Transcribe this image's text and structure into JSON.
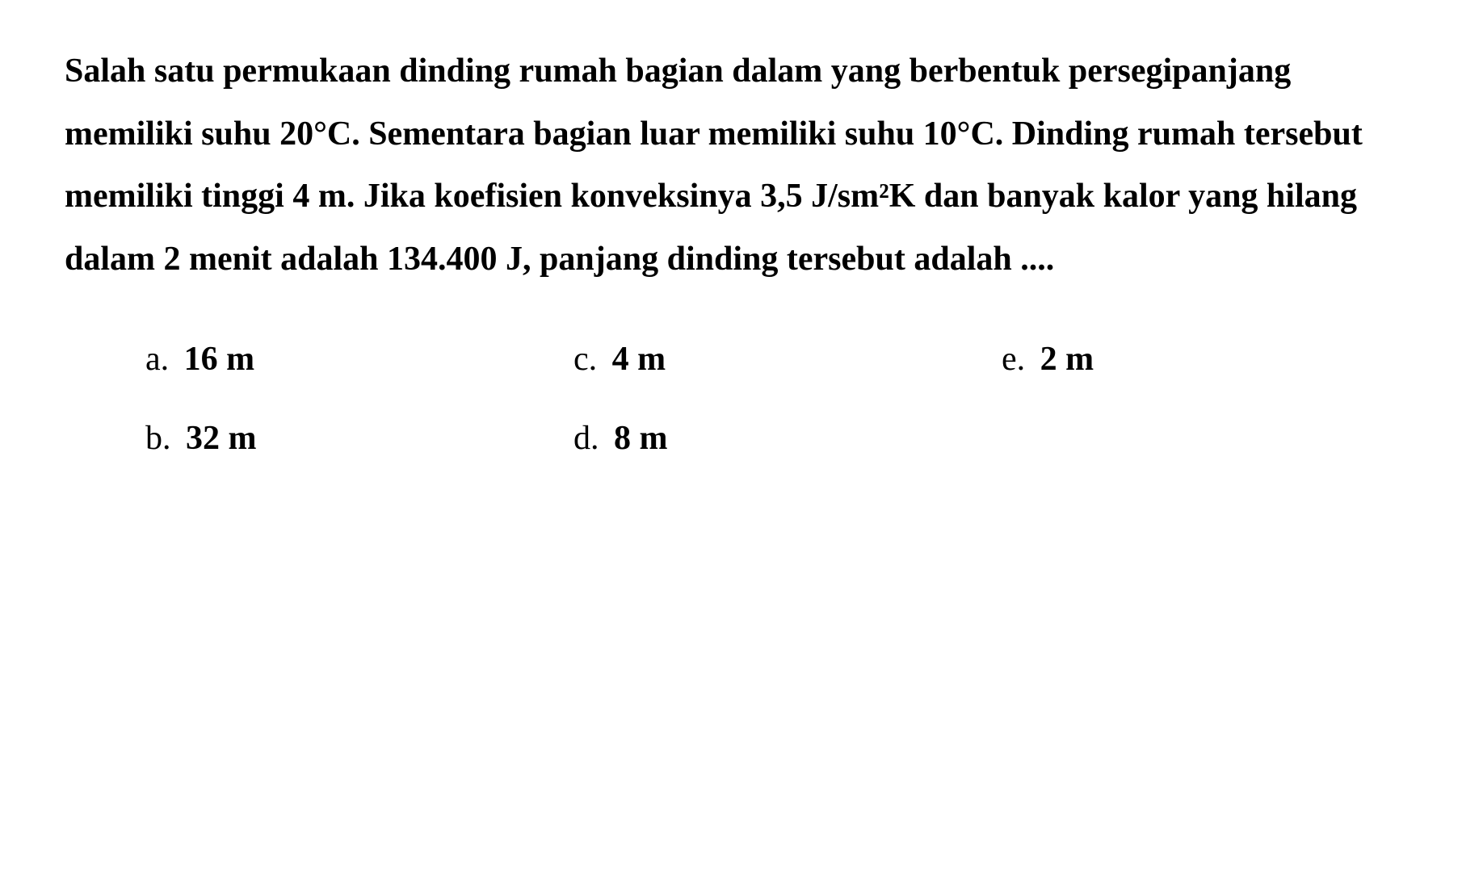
{
  "question": {
    "text": "Salah satu permukaan dinding rumah bagian dalam yang berbentuk persegipanjang memiliki suhu 20°C. Sementara bagian luar memiliki suhu 10°C. Dinding rumah tersebut memiliki tinggi 4 m. Jika koefisien konveksinya 3,5 J/sm²K dan banyak kalor yang hilang dalam 2 menit adalah 134.400 J, panjang dinding tersebut adalah ...."
  },
  "options": {
    "a": {
      "label": "a.",
      "value": "16 m"
    },
    "b": {
      "label": "b.",
      "value": "32 m"
    },
    "c": {
      "label": "c.",
      "value": "4 m"
    },
    "d": {
      "label": "d.",
      "value": "8 m"
    },
    "e": {
      "label": "e.",
      "value": "2 m"
    }
  },
  "styling": {
    "background_color": "#ffffff",
    "text_color": "#000000",
    "font_family": "Georgia, Times New Roman, serif",
    "question_fontsize": 42,
    "question_fontweight": "bold",
    "option_fontsize": 42,
    "line_height": 1.85
  }
}
